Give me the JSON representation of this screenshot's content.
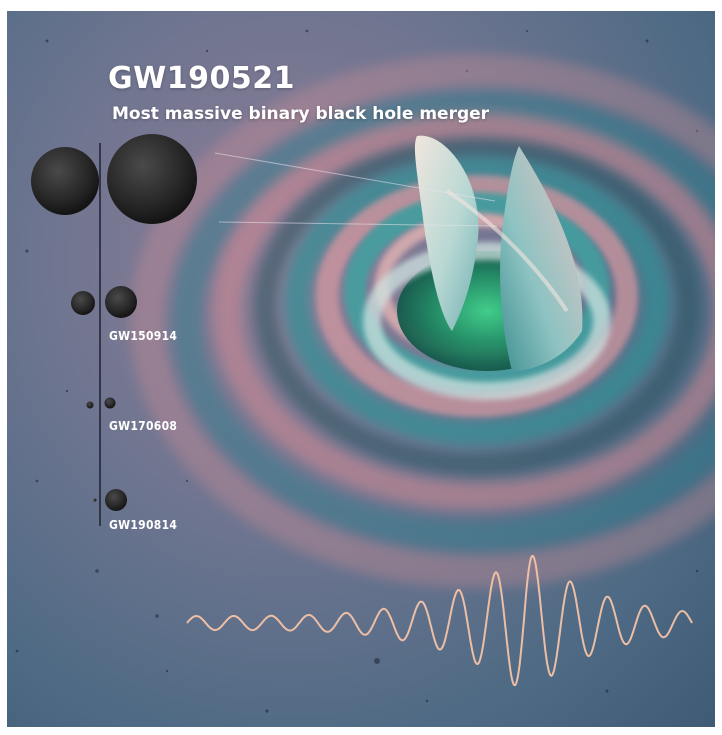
{
  "title": "GW190521",
  "subtitle": "Most massive binary black hole merger",
  "events": [
    "GW150914",
    "GW170608",
    "GW190814"
  ],
  "colors": {
    "background": "#5f6f8c",
    "ripple_teal": "#2f8a90",
    "ripple_pink": "#c98a93",
    "waveform": "#f2c4a8",
    "black_hole": "#2b2b2b"
  }
}
